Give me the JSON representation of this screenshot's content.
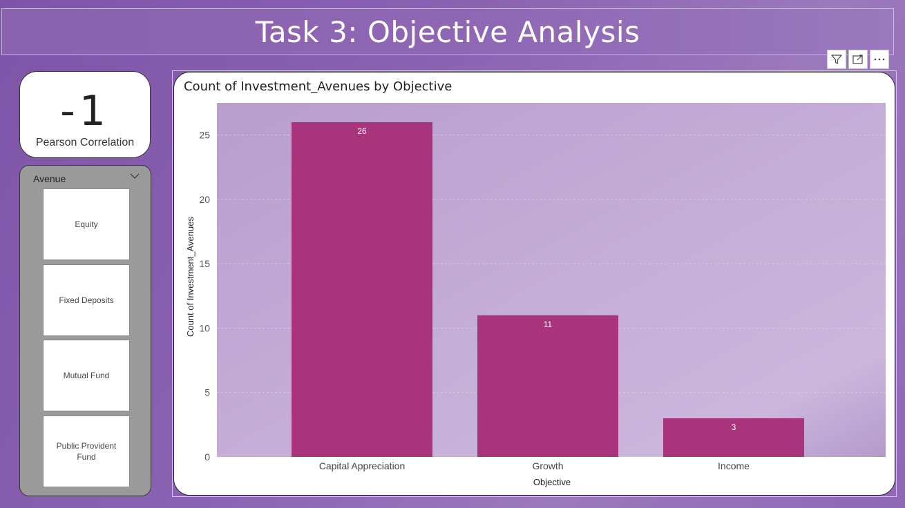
{
  "page": {
    "title": "Task 3: Objective Analysis"
  },
  "kpi": {
    "value": "-1",
    "label": "Pearson Correlation"
  },
  "slicer": {
    "title": "Avenue",
    "items": [
      "Equity",
      "Fixed Deposits",
      "Mutual Fund",
      "Public Provident Fund"
    ]
  },
  "visual_header": {
    "icons": [
      "filter-icon",
      "focus-mode-icon",
      "more-options-icon"
    ]
  },
  "colors": {
    "bar": "#a8347c",
    "plot_bg": "#c2a6d2",
    "background": "#8a62b2"
  },
  "chart_data": {
    "type": "bar",
    "title": "Count of Investment_Avenues by Objective",
    "xlabel": "Objective",
    "ylabel": "Count of Investment_Avenues",
    "categories": [
      "Capital Appreciation",
      "Growth",
      "Income"
    ],
    "values": [
      26,
      11,
      3
    ],
    "data_labels": [
      "26",
      "11",
      "3"
    ],
    "yticks": [
      0,
      5,
      10,
      15,
      20,
      25
    ],
    "ylim": [
      0,
      27.5
    ],
    "grid": true,
    "legend": "none"
  }
}
